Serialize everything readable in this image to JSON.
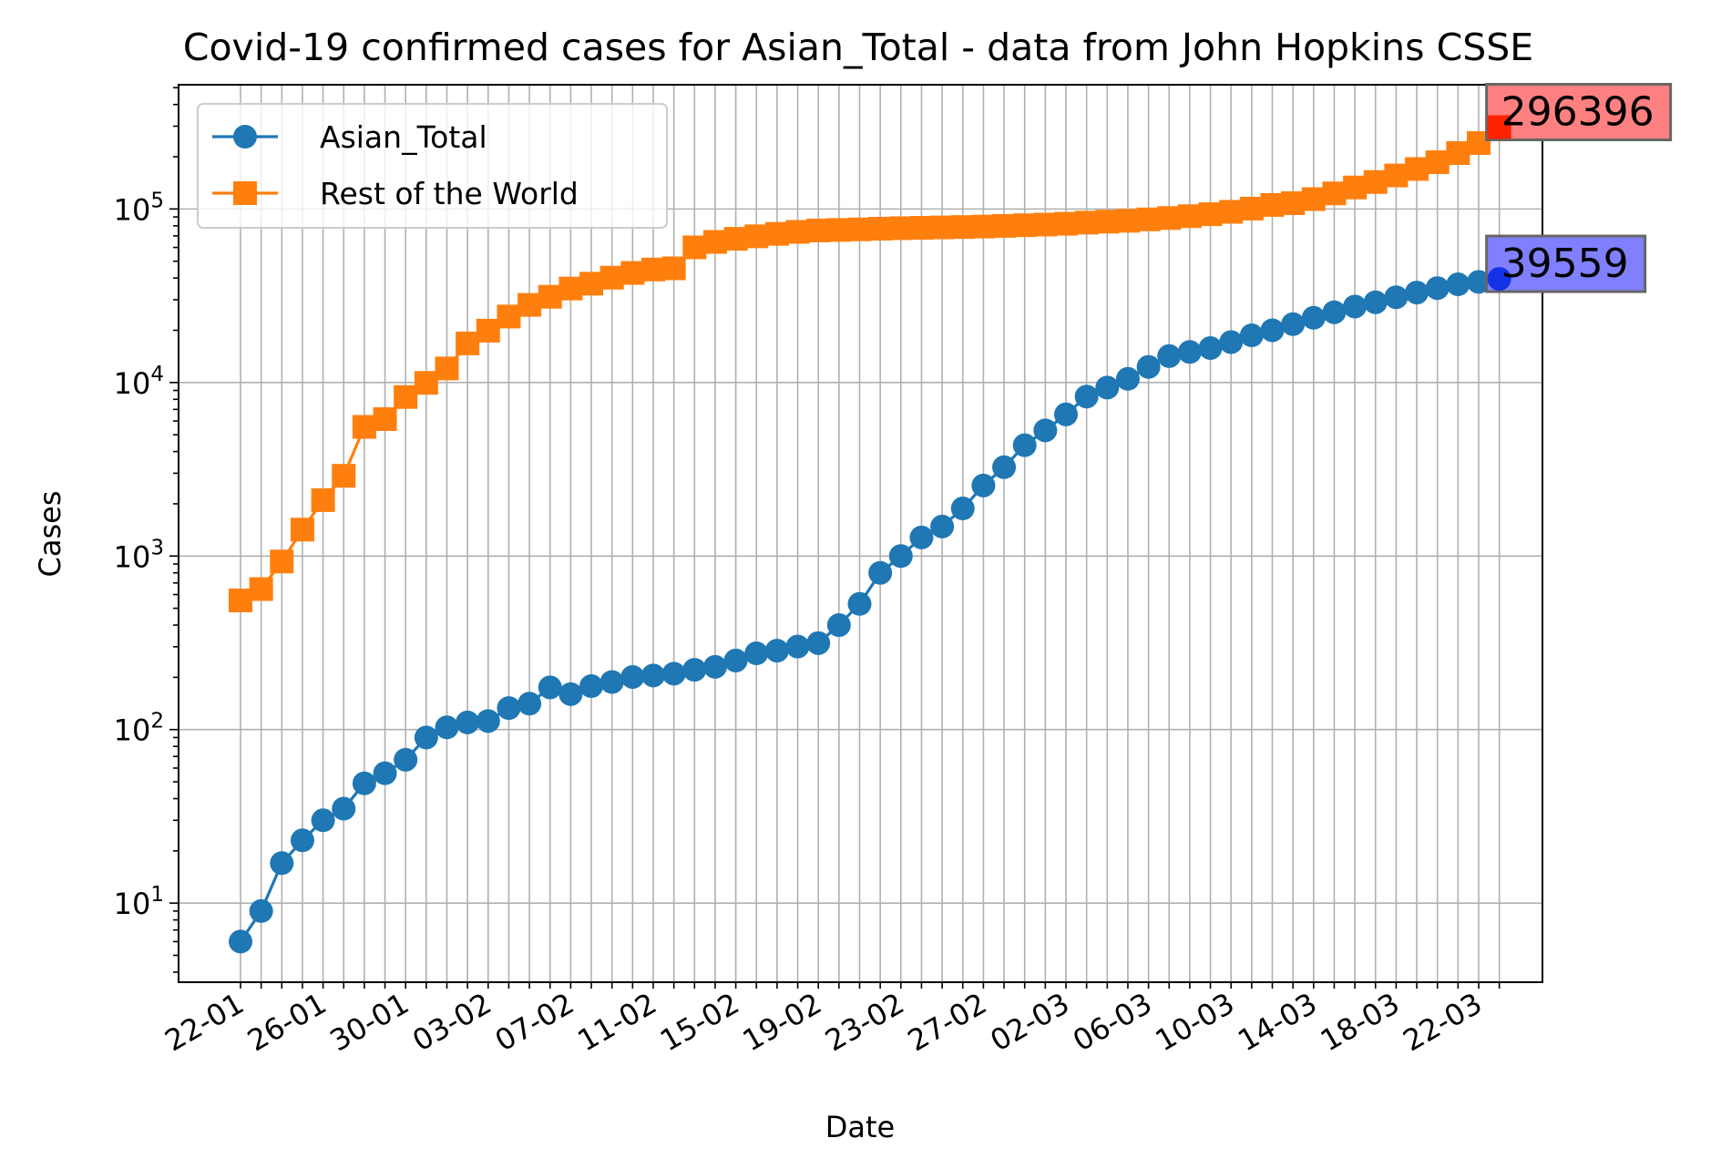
{
  "chart_data": {
    "type": "line",
    "title": "Covid-19 confirmed cases for Asian_Total - data from John Hopkins CSSE",
    "xlabel": "Date",
    "ylabel": "Cases",
    "y_scale": "log",
    "ylim": [
      3.5,
      520000
    ],
    "grid": true,
    "legend_position": "top-left",
    "dates": [
      "22-01",
      "23-01",
      "24-01",
      "25-01",
      "26-01",
      "27-01",
      "28-01",
      "29-01",
      "30-01",
      "31-01",
      "01-02",
      "02-02",
      "03-02",
      "04-02",
      "05-02",
      "06-02",
      "07-02",
      "08-02",
      "09-02",
      "10-02",
      "11-02",
      "12-02",
      "13-02",
      "14-02",
      "15-02",
      "16-02",
      "17-02",
      "18-02",
      "19-02",
      "20-02",
      "21-02",
      "22-02",
      "23-02",
      "24-02",
      "25-02",
      "26-02",
      "27-02",
      "28-02",
      "29-02",
      "01-03",
      "02-03",
      "03-03",
      "04-03",
      "05-03",
      "06-03",
      "07-03",
      "08-03",
      "09-03",
      "10-03",
      "11-03",
      "12-03",
      "13-03",
      "14-03",
      "15-03",
      "16-03",
      "17-03",
      "18-03",
      "19-03",
      "20-03",
      "21-03",
      "22-03",
      "23-03"
    ],
    "x_tick_labels": [
      "22-01",
      "26-01",
      "30-01",
      "03-02",
      "07-02",
      "11-02",
      "15-02",
      "19-02",
      "23-02",
      "27-02",
      "02-03",
      "06-03",
      "10-03",
      "14-03",
      "18-03",
      "22-03"
    ],
    "y_tick_labels": [
      {
        "value": 10,
        "base": "10",
        "exp": "1"
      },
      {
        "value": 100,
        "base": "10",
        "exp": "2"
      },
      {
        "value": 1000,
        "base": "10",
        "exp": "3"
      },
      {
        "value": 10000,
        "base": "10",
        "exp": "4"
      },
      {
        "value": 100000,
        "base": "10",
        "exp": "5"
      }
    ],
    "series": [
      {
        "name": "Asian_Total",
        "color": "#1f77b4",
        "marker": "circle",
        "values": [
          6,
          9,
          17,
          23,
          30,
          35,
          49,
          56,
          67,
          90,
          103,
          110,
          112,
          133,
          141,
          175,
          160,
          178,
          188,
          201,
          205,
          210,
          221,
          230,
          250,
          275,
          285,
          301,
          315,
          400,
          530,
          800,
          1000,
          1280,
          1480,
          1880,
          2550,
          3250,
          4350,
          5300,
          6550,
          8300,
          9350,
          10500,
          12300,
          14200,
          15000,
          15800,
          17100,
          18700,
          20000,
          21700,
          23600,
          25400,
          27400,
          29000,
          31000,
          33000,
          35000,
          36800,
          38000,
          39559
        ]
      },
      {
        "name": "Rest of the World",
        "color": "#ff7f0e",
        "marker": "square",
        "values": [
          555,
          645,
          930,
          1420,
          2100,
          2900,
          5550,
          6150,
          8250,
          9950,
          12050,
          16800,
          19900,
          24000,
          28000,
          31200,
          34800,
          37100,
          40200,
          42800,
          44800,
          45500,
          60100,
          64600,
          67300,
          69600,
          71900,
          73800,
          75200,
          75700,
          76300,
          77000,
          77500,
          77900,
          78300,
          78700,
          79200,
          79900,
          80600,
          81300,
          82200,
          83400,
          84500,
          85500,
          87100,
          88700,
          90900,
          93300,
          96300,
          100500,
          105500,
          108000,
          114000,
          123000,
          133000,
          143000,
          156000,
          170000,
          186000,
          210000,
          240000,
          296396
        ]
      }
    ],
    "annotations": [
      {
        "text": "296396",
        "series": "Rest of the World",
        "box_color": "#ff8080"
      },
      {
        "text": "39559",
        "series": "Asian_Total",
        "box_color": "#8080ff"
      }
    ]
  }
}
